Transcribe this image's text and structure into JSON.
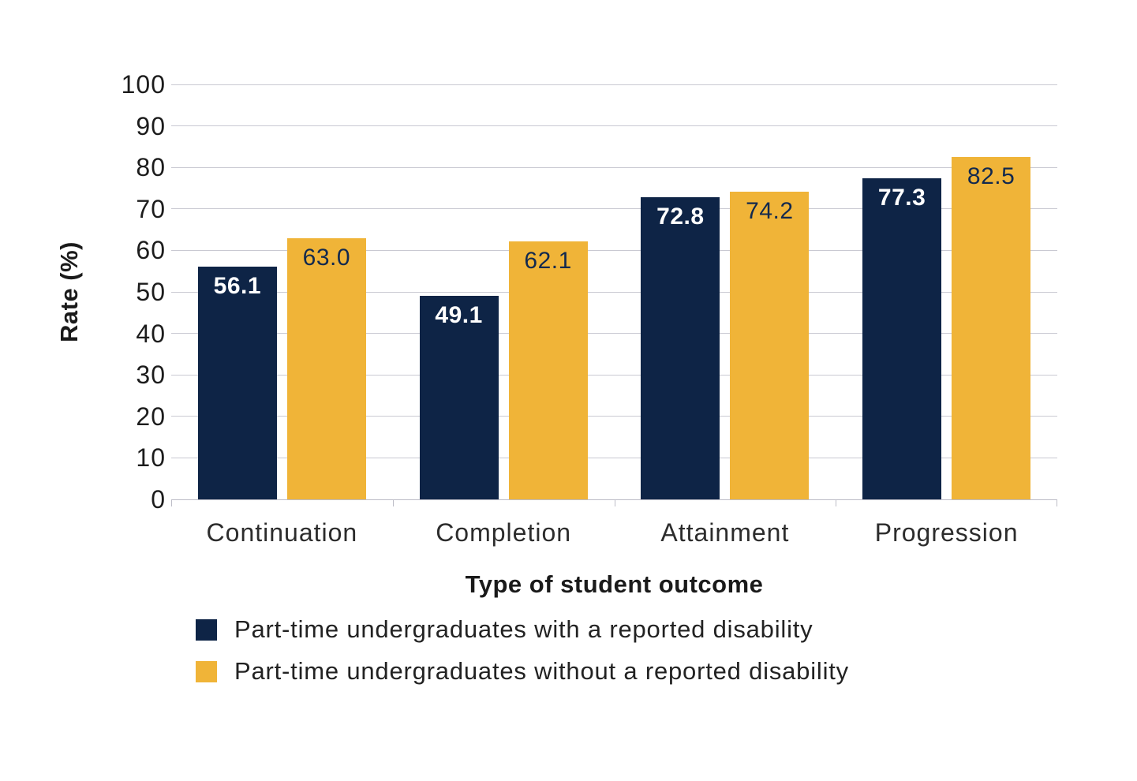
{
  "chart_data": {
    "type": "bar",
    "title": "",
    "xlabel": "Type of student outcome",
    "ylabel": "Rate (%)",
    "ylim": [
      0,
      100
    ],
    "yticks": [
      0,
      10,
      20,
      30,
      40,
      50,
      60,
      70,
      80,
      90,
      100
    ],
    "grid": true,
    "legend_position": "bottom-left",
    "categories": [
      "Continuation",
      "Completion",
      "Attainment",
      "Progression"
    ],
    "series": [
      {
        "name": "Part-time undergraduates with a reported disability",
        "color": "#0e2446",
        "label_color": "#ffffff",
        "label_weight": "700",
        "values": [
          56.1,
          49.1,
          72.8,
          77.3
        ]
      },
      {
        "name": "Part-time undergraduates without a reported disability",
        "color": "#f0b438",
        "label_color": "#12294e",
        "label_weight": "400",
        "values": [
          63.0,
          62.1,
          74.2,
          82.5
        ]
      }
    ],
    "value_label_decimals": 1
  },
  "colors": {
    "gridline": "#c9c9d2",
    "axis_line": "#bdbdc7",
    "tick_text": "#1c1c1c",
    "background": "#ffffff"
  }
}
